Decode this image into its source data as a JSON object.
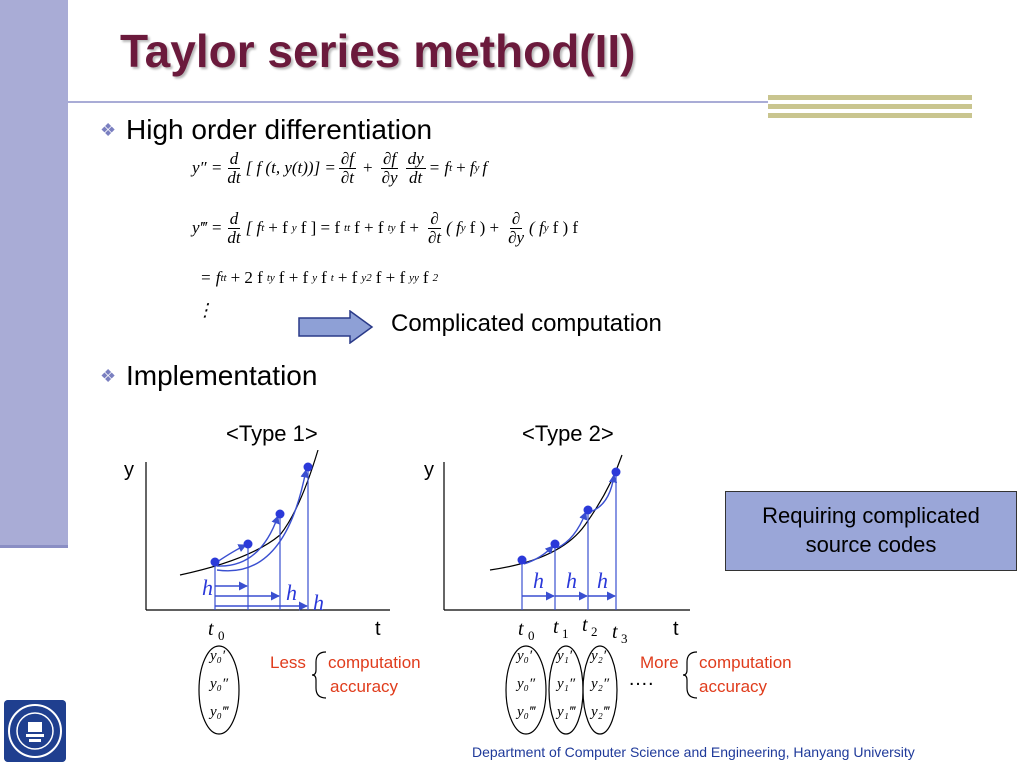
{
  "slide": {
    "title": "Taylor series method(II)",
    "bullets": [
      "High order differentiation",
      "Implementation"
    ],
    "complicated_label": "Complicated computation",
    "type1_label": "<Type 1>",
    "type2_label": "<Type 2>",
    "axis_y": "y",
    "axis_t": "t",
    "h": "h",
    "requiring_box": [
      "Requiring complicated",
      "source codes"
    ],
    "less": "Less",
    "more": "More",
    "computation": "computation",
    "accuracy": "accuracy",
    "dots": "….",
    "footer": "Department of Computer Science and Engineering, Hanyang University"
  },
  "equations": {
    "l1_lhs": "y″ =",
    "d": "d",
    "dt": "dt",
    "l1_mid": "[ f (t, y(t))] =",
    "df": "∂f",
    "dt_partial": "∂t",
    "plus": "+",
    "dy_partial": "∂y",
    "dy": "dy",
    "l1_rhs": "= f",
    "l2_lhs": "y‴ =",
    "l2_mid": "[ f",
    "l2_b": "+ f",
    "l2_c": "f ] = f",
    "partial": "∂",
    "l2_d": "f + f",
    "l2_e": "f +",
    "l2_f": "( f",
    "l2_g": "f ) +",
    "l2_h": "( f",
    "l2_i": "f ) f",
    "l3": "= f",
    "l3_b": "+ 2 f",
    "l3_c": "f + f",
    "l3_d": "f",
    "l3_e": "+ f",
    "l3_f": "f + f",
    "l3_g": "f",
    "vdots": "⋮",
    "sub_t": "t",
    "sub_y": "y",
    "sub_tt": "tt",
    "sub_ty": "ty",
    "sub_yy": "yy",
    "sup_2": "2",
    "f": "f"
  },
  "type1": {
    "tick": "t",
    "tick_sub": "0",
    "ylist": [
      "y₀′",
      "y₀″",
      "y₀‴"
    ]
  },
  "type2": {
    "ticks": [
      "t",
      "t",
      "t",
      "t"
    ],
    "tick_subs": [
      "0",
      "1",
      "2",
      "3"
    ],
    "col0": [
      "y₀′",
      "y₀″",
      "y₀‴"
    ],
    "col1": [
      "y₁′",
      "y₁″",
      "y₁‴"
    ],
    "col2": [
      "y₂′",
      "y₂″",
      "y₂‴"
    ]
  }
}
